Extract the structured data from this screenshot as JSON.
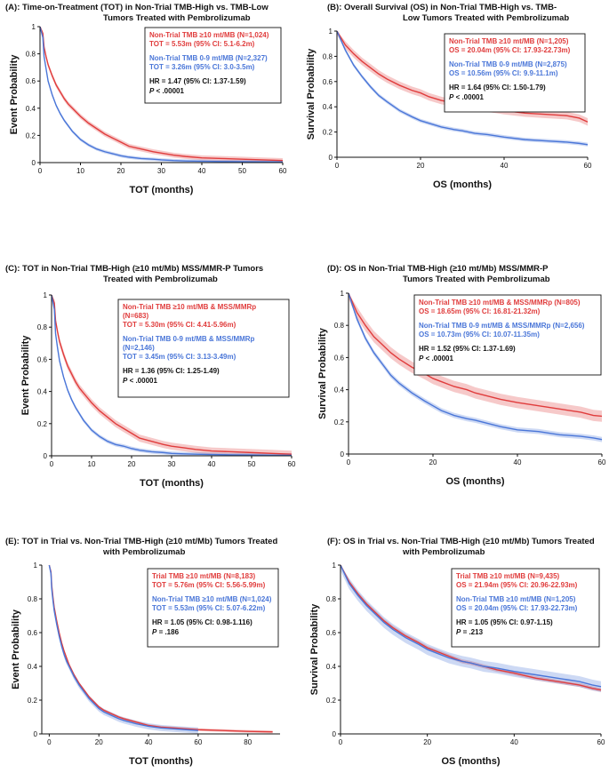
{
  "chart_data": [
    {
      "type": "line",
      "panel_label": "(A):",
      "title_lines": [
        "Time-on-Treatment (TOT) in Non-Trial TMB-High vs. TMB-Low",
        "Tumors Treated with Pembrolizumab"
      ],
      "xlabel": "TOT (months)",
      "ylabel": "Event Probability",
      "xlim": [
        0,
        60
      ],
      "ylim": [
        0,
        1
      ],
      "xticks": [
        0,
        10,
        20,
        30,
        40,
        50,
        60
      ],
      "yticks": [
        0,
        0.2,
        0.4,
        0.6,
        0.8,
        1
      ],
      "series": [
        {
          "name": "Non-Trial TMB ≥10 mt/MB (N=1,024)",
          "color": "#e03c3c",
          "band": 0.018,
          "x": [
            0,
            0.7,
            1,
            1.5,
            2,
            3,
            4,
            5,
            6,
            7,
            8,
            9,
            10,
            12,
            14,
            16,
            18,
            20,
            22,
            25,
            28,
            30,
            33,
            36,
            40,
            45,
            50,
            55,
            60
          ],
          "y": [
            1,
            0.95,
            0.85,
            0.78,
            0.72,
            0.64,
            0.57,
            0.52,
            0.47,
            0.43,
            0.4,
            0.37,
            0.34,
            0.29,
            0.25,
            0.21,
            0.18,
            0.15,
            0.12,
            0.1,
            0.08,
            0.07,
            0.055,
            0.045,
            0.035,
            0.03,
            0.025,
            0.02,
            0.015
          ]
        },
        {
          "name": "Non-Trial TMB 0-9 mt/MB (N=2,327)",
          "color": "#4a76d8",
          "band": 0.012,
          "x": [
            0,
            0.7,
            1,
            1.5,
            2,
            3,
            4,
            5,
            6,
            7,
            8,
            9,
            10,
            12,
            14,
            16,
            18,
            20,
            22,
            25,
            28,
            30,
            33,
            36,
            40,
            45,
            50,
            55,
            60
          ],
          "y": [
            1,
            0.92,
            0.78,
            0.69,
            0.6,
            0.5,
            0.42,
            0.36,
            0.31,
            0.27,
            0.23,
            0.2,
            0.17,
            0.13,
            0.1,
            0.08,
            0.065,
            0.05,
            0.04,
            0.03,
            0.025,
            0.02,
            0.015,
            0.012,
            0.01,
            0.008,
            0.007,
            0.006,
            0.005
          ]
        }
      ],
      "legend": [
        {
          "line1": "Non-Trial TMB ≥10 mt/MB (N=1,024)",
          "line2": "TOT = 5.53m (95% CI: 5.1-6.2m)",
          "color": "#e03c3c"
        },
        {
          "line1": "Non-Trial TMB 0-9 mt/MB (N=2,327)",
          "line2": "TOT = 3.26m (95% CI: 3.0-3.5m)",
          "color": "#4a76d8"
        }
      ],
      "hr": "HR = 1.47 (95% CI: 1.37-1.59)",
      "p_label": "P",
      "p_value": " < .00001",
      "legend_position": "top-right"
    },
    {
      "type": "line",
      "panel_label": "(B):",
      "title_lines": [
        "Overall Survival (OS) in Non-Trial TMB-High vs. TMB-",
        "Low Tumors Treated with Pembrolizumab"
      ],
      "xlabel": "OS (months)",
      "ylabel": "Survival Probability",
      "xlim": [
        0,
        60
      ],
      "ylim": [
        0,
        1
      ],
      "xticks": [
        0,
        20,
        40,
        60
      ],
      "yticks": [
        0,
        0.2,
        0.4,
        0.6,
        0.8,
        1
      ],
      "series": [
        {
          "name": "Non-Trial TMB ≥10 mt/MB (N=1,205)",
          "color": "#e03c3c",
          "band": 0.03,
          "x": [
            0,
            2,
            4,
            6,
            8,
            10,
            12,
            15,
            18,
            20,
            22,
            25,
            28,
            30,
            33,
            36,
            40,
            45,
            50,
            55,
            58,
            60
          ],
          "y": [
            1,
            0.89,
            0.82,
            0.76,
            0.71,
            0.66,
            0.62,
            0.57,
            0.53,
            0.51,
            0.48,
            0.45,
            0.43,
            0.42,
            0.4,
            0.39,
            0.37,
            0.35,
            0.34,
            0.33,
            0.31,
            0.28
          ]
        },
        {
          "name": "Non-Trial TMB 0-9 mt/MB (N=2,875)",
          "color": "#4a76d8",
          "band": 0.015,
          "x": [
            0,
            2,
            4,
            6,
            8,
            10,
            12,
            15,
            18,
            20,
            22,
            25,
            28,
            30,
            33,
            36,
            40,
            45,
            50,
            55,
            58,
            60
          ],
          "y": [
            1,
            0.85,
            0.73,
            0.64,
            0.56,
            0.49,
            0.44,
            0.37,
            0.32,
            0.29,
            0.27,
            0.24,
            0.22,
            0.21,
            0.19,
            0.18,
            0.16,
            0.14,
            0.13,
            0.12,
            0.11,
            0.1
          ]
        }
      ],
      "legend": [
        {
          "line1": "Non-Trial TMB ≥10 mt/MB (N=1,205)",
          "line2": "OS = 20.04m (95% CI: 17.93-22.73m)",
          "color": "#e03c3c"
        },
        {
          "line1": "Non-Trial TMB 0-9 mt/MB (N=2,875)",
          "line2": "OS = 10.56m (95% CI: 9.9-11.1m)",
          "color": "#4a76d8"
        }
      ],
      "hr": "HR = 1.64 (95% CI: 1.50-1.79)",
      "p_label": "P",
      "p_value": " < .00001",
      "legend_position": "top-right"
    },
    {
      "type": "line",
      "panel_label": "(C):",
      "title_lines": [
        "TOT in Non-Trial TMB-High (≥10 mt/Mb) MSS/MMR-P Tumors",
        "Treated with Pembrolizumab"
      ],
      "xlabel": "TOT (months)",
      "ylabel": "Event Probability",
      "xlim": [
        0,
        60
      ],
      "ylim": [
        0,
        1
      ],
      "xticks": [
        0,
        10,
        20,
        30,
        40,
        50,
        60
      ],
      "yticks": [
        0,
        0.2,
        0.4,
        0.6,
        0.8,
        1
      ],
      "series": [
        {
          "name": "Non-Trial TMB ≥10 mt/MB & MSS/MMRp (N=683)",
          "color": "#e03c3c",
          "band": 0.022,
          "x": [
            0,
            0.7,
            1,
            1.5,
            2,
            3,
            4,
            5,
            6,
            7,
            8,
            9,
            10,
            12,
            14,
            16,
            18,
            20,
            22,
            25,
            28,
            30,
            33,
            36,
            40,
            45,
            50,
            55,
            60
          ],
          "y": [
            1,
            0.95,
            0.84,
            0.77,
            0.71,
            0.63,
            0.56,
            0.51,
            0.46,
            0.42,
            0.39,
            0.36,
            0.33,
            0.28,
            0.24,
            0.2,
            0.17,
            0.14,
            0.11,
            0.09,
            0.07,
            0.06,
            0.05,
            0.04,
            0.03,
            0.025,
            0.02,
            0.015,
            0.01
          ]
        },
        {
          "name": "Non-Trial TMB 0-9 mt/MB & MSS/MMRp (N=2,146)",
          "color": "#4a76d8",
          "band": 0.012,
          "x": [
            0,
            0.7,
            1,
            1.5,
            2,
            3,
            4,
            5,
            6,
            7,
            8,
            9,
            10,
            12,
            14,
            16,
            18,
            20,
            22,
            25,
            28,
            30,
            33,
            36,
            40,
            45,
            50,
            55,
            60
          ],
          "y": [
            1,
            0.91,
            0.76,
            0.67,
            0.59,
            0.49,
            0.41,
            0.35,
            0.3,
            0.26,
            0.22,
            0.19,
            0.16,
            0.12,
            0.09,
            0.07,
            0.06,
            0.045,
            0.035,
            0.025,
            0.02,
            0.015,
            0.012,
            0.01,
            0.008,
            0.006,
            0.005,
            0.004,
            0.003
          ]
        }
      ],
      "legend": [
        {
          "line1": "Non-Trial TMB ≥10 mt/MB & MSS/MMRp",
          "line2": "(N=683)",
          "line3": "TOT = 5.30m (95% CI: 4.41-5.96m)",
          "color": "#e03c3c"
        },
        {
          "line1": "Non-Trial TMB 0-9 mt/MB & MSS/MMRp",
          "line2": "(N=2,146)",
          "line3": "TOT = 3.45m (95% CI: 3.13-3.49m)",
          "color": "#4a76d8"
        }
      ],
      "hr": "HR = 1.36 (95% CI: 1.25-1.49)",
      "p_label": "P",
      "p_value": " < .00001",
      "legend_position": "top-right"
    },
    {
      "type": "line",
      "panel_label": "(D):",
      "title_lines": [
        "OS in Non-Trial TMB-High (≥10 mt/Mb) MSS/MMR-P",
        "Tumors Treated with Pembrolizumab"
      ],
      "xlabel": "OS (months)",
      "ylabel": "Survival Probability",
      "xlim": [
        0,
        60
      ],
      "ylim": [
        0,
        1
      ],
      "xticks": [
        0,
        20,
        40,
        60
      ],
      "yticks": [
        0,
        0.2,
        0.4,
        0.6,
        0.8,
        1
      ],
      "series": [
        {
          "name": "Non-Trial TMB ≥10 mt/MB & MSS/MMRp (N=805)",
          "color": "#e03c3c",
          "band": 0.035,
          "x": [
            0,
            2,
            4,
            6,
            8,
            10,
            12,
            15,
            18,
            20,
            22,
            25,
            28,
            30,
            33,
            36,
            40,
            45,
            50,
            55,
            58,
            60
          ],
          "y": [
            1,
            0.88,
            0.8,
            0.73,
            0.68,
            0.63,
            0.59,
            0.54,
            0.5,
            0.47,
            0.45,
            0.42,
            0.4,
            0.38,
            0.36,
            0.34,
            0.32,
            0.3,
            0.28,
            0.26,
            0.24,
            0.235
          ]
        },
        {
          "name": "Non-Trial TMB 0-9 mt/MB & MSS/MMRp (N=2,656)",
          "color": "#4a76d8",
          "band": 0.016,
          "x": [
            0,
            2,
            4,
            6,
            8,
            10,
            12,
            15,
            18,
            20,
            22,
            25,
            28,
            30,
            33,
            36,
            40,
            45,
            50,
            55,
            58,
            60
          ],
          "y": [
            1,
            0.84,
            0.72,
            0.63,
            0.56,
            0.49,
            0.44,
            0.38,
            0.33,
            0.3,
            0.27,
            0.24,
            0.22,
            0.21,
            0.19,
            0.17,
            0.15,
            0.14,
            0.12,
            0.11,
            0.1,
            0.09
          ]
        }
      ],
      "legend": [
        {
          "line1": "Non-Trial TMB ≥10 mt/MB & MSS/MMRp (N=805)",
          "line2": "OS = 18.65m (95% CI: 16.81-21.32m)",
          "color": "#e03c3c"
        },
        {
          "line1": "Non-Trial TMB 0-9 mt/MB & MSS/MMRp (N=2,656)",
          "line2": "OS = 10.73m (95% CI: 10.07-11.35m)",
          "color": "#4a76d8"
        }
      ],
      "hr": "HR = 1.52 (95% CI: 1.37-1.69)",
      "p_label": "P",
      "p_value": " < .00001",
      "legend_position": "top-right"
    },
    {
      "type": "line",
      "panel_label": "(E):",
      "title_lines": [
        "TOT in Trial vs. Non-Trial TMB-High (≥10 mt/Mb) Tumors Treated",
        "with Pembrolizumab"
      ],
      "xlabel": "TOT (months)",
      "ylabel": "Event Probability",
      "xlim": [
        -3,
        93
      ],
      "ylim": [
        0,
        1
      ],
      "xticks": [
        0,
        20,
        40,
        60,
        80
      ],
      "yticks": [
        0,
        0.2,
        0.4,
        0.6,
        0.8,
        1
      ],
      "series": [
        {
          "name": "Trial TMB ≥10 mt/MB (N=8,183)",
          "color": "#e03c3c",
          "band": 0.008,
          "x": [
            0,
            0.7,
            1,
            1.5,
            2,
            3,
            4,
            5,
            6,
            7,
            8,
            9,
            10,
            12,
            14,
            16,
            18,
            20,
            22,
            25,
            28,
            30,
            35,
            40,
            45,
            50,
            55,
            60,
            70,
            80,
            90
          ],
          "y": [
            1,
            0.96,
            0.88,
            0.81,
            0.75,
            0.67,
            0.6,
            0.54,
            0.49,
            0.45,
            0.41,
            0.38,
            0.35,
            0.3,
            0.26,
            0.22,
            0.19,
            0.16,
            0.14,
            0.12,
            0.1,
            0.09,
            0.07,
            0.05,
            0.04,
            0.035,
            0.03,
            0.025,
            0.02,
            0.015,
            0.012
          ]
        },
        {
          "name": "Non-Trial TMB ≥10 mt/MB (N=1,024)",
          "color": "#4a76d8",
          "band": 0.018,
          "x": [
            0,
            0.7,
            1,
            1.5,
            2,
            3,
            4,
            5,
            6,
            7,
            8,
            9,
            10,
            12,
            14,
            16,
            18,
            20,
            22,
            25,
            28,
            30,
            35,
            40,
            45,
            50,
            55,
            60
          ],
          "y": [
            1,
            0.95,
            0.86,
            0.79,
            0.73,
            0.65,
            0.58,
            0.52,
            0.47,
            0.43,
            0.4,
            0.37,
            0.34,
            0.29,
            0.25,
            0.21,
            0.18,
            0.15,
            0.13,
            0.11,
            0.09,
            0.08,
            0.06,
            0.045,
            0.035,
            0.03,
            0.025,
            0.02
          ]
        }
      ],
      "legend": [
        {
          "line1": "Trial TMB ≥10 mt/MB (N=8,183)",
          "line2": "TOT = 5.76m (95% CI: 5.56-5.99m)",
          "color": "#e03c3c"
        },
        {
          "line1": "Non-Trial TMB ≥10 mt/MB (N=1,024)",
          "line2": "TOT = 5.53m (95% CI: 5.07-6.22m)",
          "color": "#4a76d8"
        }
      ],
      "hr": "HR = 1.05 (95% CI: 0.98-1.116)",
      "p_label": "P",
      "p_value": " = .186",
      "legend_position": "top-right"
    },
    {
      "type": "line",
      "panel_label": "(F):",
      "title_lines": [
        "OS in Trial vs. Non-Trial TMB-High (≥10 mt/Mb) Tumors Treated",
        "with Pembrolizumab"
      ],
      "xlabel": "OS (months)",
      "ylabel": "Survival Probability",
      "xlim": [
        0,
        60
      ],
      "ylim": [
        0,
        1
      ],
      "xticks": [
        0,
        20,
        40,
        60
      ],
      "yticks": [
        0,
        0.2,
        0.4,
        0.6,
        0.8,
        1
      ],
      "series": [
        {
          "name": "Trial TMB ≥10 mt/MB (N=9,435)",
          "color": "#e03c3c",
          "band": 0.012,
          "x": [
            0,
            2,
            4,
            6,
            8,
            10,
            12,
            15,
            18,
            20,
            22,
            25,
            28,
            30,
            33,
            36,
            40,
            45,
            50,
            55,
            58,
            60
          ],
          "y": [
            1,
            0.9,
            0.83,
            0.77,
            0.72,
            0.67,
            0.63,
            0.58,
            0.54,
            0.51,
            0.49,
            0.46,
            0.43,
            0.42,
            0.4,
            0.38,
            0.36,
            0.33,
            0.31,
            0.29,
            0.27,
            0.26
          ]
        },
        {
          "name": "Non-Trial TMB ≥10 mt/MB (N=1,205)",
          "color": "#4a76d8",
          "band": 0.032,
          "x": [
            0,
            2,
            4,
            6,
            8,
            10,
            12,
            15,
            18,
            20,
            22,
            25,
            28,
            30,
            33,
            36,
            40,
            45,
            50,
            55,
            58,
            60
          ],
          "y": [
            1,
            0.89,
            0.82,
            0.76,
            0.71,
            0.66,
            0.62,
            0.57,
            0.53,
            0.5,
            0.48,
            0.45,
            0.43,
            0.42,
            0.4,
            0.39,
            0.37,
            0.35,
            0.33,
            0.31,
            0.29,
            0.28
          ]
        }
      ],
      "legend": [
        {
          "line1": "Trial TMB ≥10 mt/MB (N=9,435)",
          "line2": "OS = 21.94m (95% CI: 20.96-22.93m)",
          "color": "#e03c3c"
        },
        {
          "line1": "Non-Trial TMB ≥10 mt/MB (N=1,205)",
          "line2": "OS = 20.04m (95% CI: 17.93-22.73m)",
          "color": "#4a76d8"
        }
      ],
      "hr": "HR = 1.05 (95% CI: 0.97-1.15)",
      "p_label": "P",
      "p_value": " = .213",
      "legend_position": "top-right"
    }
  ]
}
